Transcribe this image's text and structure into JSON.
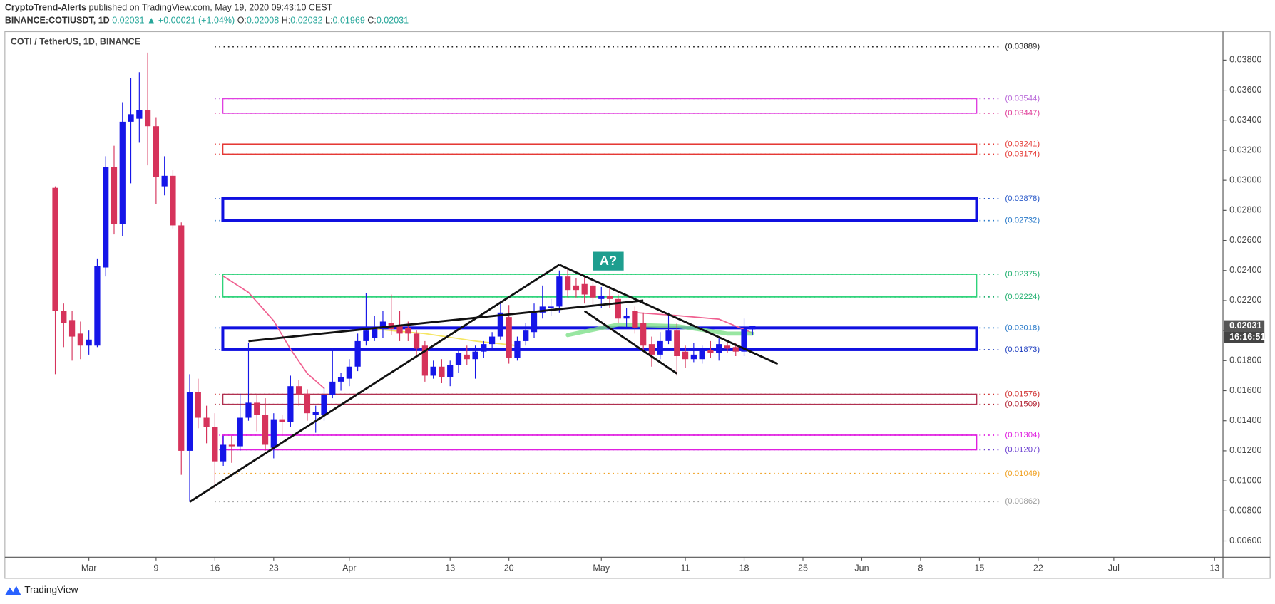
{
  "header": {
    "author": "CryptoTrend-Alerts",
    "published": " published on TradingView.com, May 19, 2020 09:43:10 CEST",
    "symbol": "BINANCE:COTIUSDT, 1D",
    "change": "▲ +0.00021 (+1.04%)",
    "ohlc_labels": [
      "O:",
      "H:",
      "L:",
      "C:"
    ],
    "countdown": "16:16:51",
    "footer": "TradingView"
  },
  "chart_data": {
    "type": "candlestick",
    "title": "COTI / TetherUS, 1D, BINANCE",
    "up_color": "#1515e8",
    "down_color": "#d6335b",
    "x": [
      "2020-02-26",
      "2020-02-27",
      "2020-02-28",
      "2020-02-29",
      "2020-03-01",
      "2020-03-02",
      "2020-03-03",
      "2020-03-04",
      "2020-03-05",
      "2020-03-06",
      "2020-03-07",
      "2020-03-08",
      "2020-03-09",
      "2020-03-10",
      "2020-03-11",
      "2020-03-12",
      "2020-03-13",
      "2020-03-14",
      "2020-03-15",
      "2020-03-16",
      "2020-03-17",
      "2020-03-18",
      "2020-03-19",
      "2020-03-20",
      "2020-03-21",
      "2020-03-22",
      "2020-03-23",
      "2020-03-24",
      "2020-03-25",
      "2020-03-26",
      "2020-03-27",
      "2020-03-28",
      "2020-03-29",
      "2020-03-30",
      "2020-03-31",
      "2020-04-01",
      "2020-04-02",
      "2020-04-03",
      "2020-04-04",
      "2020-04-05",
      "2020-04-06",
      "2020-04-07",
      "2020-04-08",
      "2020-04-09",
      "2020-04-10",
      "2020-04-11",
      "2020-04-12",
      "2020-04-13",
      "2020-04-14",
      "2020-04-15",
      "2020-04-16",
      "2020-04-17",
      "2020-04-18",
      "2020-04-19",
      "2020-04-20",
      "2020-04-21",
      "2020-04-22",
      "2020-04-23",
      "2020-04-24",
      "2020-04-25",
      "2020-04-26",
      "2020-04-27",
      "2020-04-28",
      "2020-04-29",
      "2020-04-30",
      "2020-05-01",
      "2020-05-02",
      "2020-05-03",
      "2020-05-04",
      "2020-05-05",
      "2020-05-06",
      "2020-05-07",
      "2020-05-08",
      "2020-05-09",
      "2020-05-10",
      "2020-05-11",
      "2020-05-12",
      "2020-05-13",
      "2020-05-14",
      "2020-05-15",
      "2020-05-16",
      "2020-05-17",
      "2020-05-18",
      "2020-05-19"
    ],
    "open": [
      0.0295,
      0.0213,
      0.0207,
      0.0198,
      0.019,
      0.019,
      0.0242,
      0.0309,
      0.0271,
      0.0339,
      0.0341,
      0.0347,
      0.0336,
      0.0296,
      0.0303,
      0.027,
      0.012,
      0.0159,
      0.0142,
      0.0136,
      0.0113,
      0.0124,
      0.0123,
      0.0142,
      0.0152,
      0.0144,
      0.0122,
      0.0141,
      0.0139,
      0.0163,
      0.0158,
      0.0144,
      0.0144,
      0.0157,
      0.0166,
      0.0168,
      0.0176,
      0.0193,
      0.0195,
      0.0201,
      0.0205,
      0.0203,
      0.0202,
      0.0198,
      0.019,
      0.017,
      0.0176,
      0.0169,
      0.0177,
      0.0184,
      0.0181,
      0.0186,
      0.0191,
      0.0196,
      0.0209,
      0.0182,
      0.0193,
      0.0199,
      0.0212,
      0.0215,
      0.0216,
      0.0236,
      0.023,
      0.0231,
      0.023,
      0.0221,
      0.0223,
      0.0221,
      0.0208,
      0.0213,
      0.0205,
      0.0191,
      0.0184,
      0.0193,
      0.02,
      0.0186,
      0.0181,
      0.0181,
      0.0187,
      0.0185,
      0.019,
      0.0189,
      0.0186,
      0.02008
    ],
    "high": [
      0.0296,
      0.0218,
      0.0213,
      0.0206,
      0.02,
      0.0248,
      0.0316,
      0.0323,
      0.0352,
      0.0368,
      0.0372,
      0.0385,
      0.0342,
      0.0316,
      0.0307,
      0.0272,
      0.0171,
      0.0168,
      0.015,
      0.0145,
      0.013,
      0.013,
      0.0158,
      0.0192,
      0.0158,
      0.0155,
      0.0145,
      0.0144,
      0.017,
      0.0167,
      0.0161,
      0.015,
      0.0162,
      0.0188,
      0.0172,
      0.0181,
      0.0198,
      0.0225,
      0.021,
      0.0213,
      0.0224,
      0.0213,
      0.0206,
      0.02,
      0.0193,
      0.018,
      0.0181,
      0.018,
      0.0188,
      0.019,
      0.019,
      0.0193,
      0.0199,
      0.022,
      0.0217,
      0.0196,
      0.0205,
      0.0218,
      0.023,
      0.0221,
      0.024,
      0.0242,
      0.0235,
      0.0236,
      0.0234,
      0.0229,
      0.0228,
      0.0224,
      0.0215,
      0.0216,
      0.0212,
      0.0196,
      0.0199,
      0.0212,
      0.0205,
      0.019,
      0.0192,
      0.019,
      0.0193,
      0.0195,
      0.0193,
      0.0192,
      0.0208,
      0.02032
    ],
    "low": [
      0.0171,
      0.0189,
      0.018,
      0.0181,
      0.0184,
      0.0189,
      0.0236,
      0.0264,
      0.0263,
      0.0298,
      0.0325,
      0.031,
      0.0284,
      0.029,
      0.0268,
      0.0104,
      0.0086,
      0.0135,
      0.0125,
      0.0095,
      0.011,
      0.0112,
      0.012,
      0.014,
      0.0133,
      0.012,
      0.0115,
      0.0131,
      0.0136,
      0.015,
      0.014,
      0.0132,
      0.014,
      0.0155,
      0.016,
      0.0163,
      0.0173,
      0.019,
      0.0193,
      0.0195,
      0.0197,
      0.0193,
      0.0193,
      0.0183,
      0.0166,
      0.0168,
      0.0165,
      0.0163,
      0.0172,
      0.0177,
      0.0168,
      0.0182,
      0.0188,
      0.0194,
      0.0178,
      0.018,
      0.019,
      0.0195,
      0.0208,
      0.021,
      0.0212,
      0.0222,
      0.0222,
      0.0218,
      0.0216,
      0.0215,
      0.0215,
      0.0205,
      0.0202,
      0.0198,
      0.0186,
      0.0176,
      0.0181,
      0.0191,
      0.017,
      0.0175,
      0.0179,
      0.0178,
      0.0182,
      0.018,
      0.0185,
      0.0183,
      0.0183,
      0.01969
    ],
    "close": [
      0.0213,
      0.0205,
      0.0196,
      0.019,
      0.0194,
      0.0243,
      0.0309,
      0.0271,
      0.0339,
      0.0344,
      0.0347,
      0.0336,
      0.0302,
      0.0303,
      0.027,
      0.012,
      0.0159,
      0.0142,
      0.0136,
      0.0113,
      0.0124,
      0.0123,
      0.0142,
      0.0152,
      0.0144,
      0.0124,
      0.0141,
      0.0139,
      0.0163,
      0.0157,
      0.0145,
      0.0146,
      0.0157,
      0.0166,
      0.0169,
      0.0176,
      0.0193,
      0.02,
      0.0202,
      0.0206,
      0.0201,
      0.0198,
      0.0198,
      0.0188,
      0.017,
      0.0176,
      0.0169,
      0.0177,
      0.0185,
      0.0181,
      0.0186,
      0.0191,
      0.0196,
      0.0212,
      0.0182,
      0.0193,
      0.02,
      0.0212,
      0.0216,
      0.0216,
      0.0236,
      0.0227,
      0.0227,
      0.0224,
      0.0222,
      0.0223,
      0.0221,
      0.0208,
      0.021,
      0.0202,
      0.019,
      0.0184,
      0.0193,
      0.02,
      0.0183,
      0.0181,
      0.0184,
      0.0187,
      0.0185,
      0.0191,
      0.0188,
      0.0186,
      0.0201,
      0.02031
    ],
    "xlim": [
      "2020-02-20",
      "2020-07-14"
    ],
    "xticks": [
      {
        "value": "2020-03-01",
        "label": "Mar"
      },
      {
        "value": "2020-03-09",
        "label": "9"
      },
      {
        "value": "2020-03-16",
        "label": "16"
      },
      {
        "value": "2020-03-23",
        "label": "23"
      },
      {
        "value": "2020-04-01",
        "label": "Apr"
      },
      {
        "value": "2020-04-13",
        "label": "13"
      },
      {
        "value": "2020-04-20",
        "label": "20"
      },
      {
        "value": "2020-05-01",
        "label": "May"
      },
      {
        "value": "2020-05-11",
        "label": "11"
      },
      {
        "value": "2020-05-18",
        "label": "18"
      },
      {
        "value": "2020-05-25",
        "label": "25"
      },
      {
        "value": "2020-06-01",
        "label": "Jun"
      },
      {
        "value": "2020-06-08",
        "label": "8"
      },
      {
        "value": "2020-06-15",
        "label": "15"
      },
      {
        "value": "2020-06-22",
        "label": "22"
      },
      {
        "value": "2020-07-01",
        "label": "Jul"
      },
      {
        "value": "2020-07-13",
        "label": "13"
      }
    ],
    "ylim": [
      0.00492,
      0.03989
    ],
    "yticks": [
      {
        "value": 0.006,
        "label": "0.00600"
      },
      {
        "value": 0.008,
        "label": "0.00800"
      },
      {
        "value": 0.01,
        "label": "0.01000"
      },
      {
        "value": 0.012,
        "label": "0.01200"
      },
      {
        "value": 0.014,
        "label": "0.01400"
      },
      {
        "value": 0.016,
        "label": "0.01600"
      },
      {
        "value": 0.018,
        "label": "0.01800"
      },
      {
        "value": 0.02,
        "label": "0.02000"
      },
      {
        "value": 0.022,
        "label": "0.02200"
      },
      {
        "value": 0.024,
        "label": "0.02400"
      },
      {
        "value": 0.026,
        "label": "0.02600"
      },
      {
        "value": 0.028,
        "label": "0.02800"
      },
      {
        "value": 0.03,
        "label": "0.03000"
      },
      {
        "value": 0.032,
        "label": "0.03200"
      },
      {
        "value": 0.034,
        "label": "0.03400"
      },
      {
        "value": 0.036,
        "label": "0.03600"
      },
      {
        "value": 0.038,
        "label": "0.03800"
      }
    ],
    "zones": [
      {
        "color": "#e040e0",
        "width": 1.5,
        "levels": [
          {
            "value": 0.03544,
            "label": "(0.03544)",
            "color": "#b96ad9"
          },
          {
            "value": 0.03447,
            "label": "(0.03447)",
            "color": "#e0409a"
          }
        ]
      },
      {
        "color": "#e53935",
        "width": 1.5,
        "levels": [
          {
            "value": 0.03241,
            "label": "(0.03241)",
            "color": "#e53935"
          },
          {
            "value": 0.03174,
            "label": "(0.03174)",
            "color": "#e53935"
          }
        ]
      },
      {
        "color": "#1010e0",
        "width": 3.5,
        "levels": [
          {
            "value": 0.02878,
            "label": "(0.02878)",
            "color": "#2a5ac9"
          },
          {
            "value": 0.02732,
            "label": "(0.02732)",
            "color": "#2a7ac9"
          }
        ]
      },
      {
        "color": "#2ed37a",
        "width": 1.5,
        "levels": [
          {
            "value": 0.02375,
            "label": "(0.02375)",
            "color": "#22b070"
          },
          {
            "value": 0.02224,
            "label": "(0.02224)",
            "color": "#22b070"
          }
        ]
      },
      {
        "color": "#1010e0",
        "width": 3.5,
        "levels": [
          {
            "value": 0.02018,
            "label": "(0.02018)",
            "color": "#2a7ac9"
          },
          {
            "value": 0.01873,
            "label": "(0.01873)",
            "color": "#2040c0"
          }
        ]
      },
      {
        "color": "#b03050",
        "width": 1.5,
        "levels": [
          {
            "value": 0.01576,
            "label": "(0.01576)",
            "color": "#d03030"
          },
          {
            "value": 0.01509,
            "label": "(0.01509)",
            "color": "#b02030"
          }
        ]
      },
      {
        "color": "#e020e0",
        "width": 1.5,
        "levels": [
          {
            "value": 0.01304,
            "label": "(0.01304)",
            "color": "#e020e0"
          },
          {
            "value": 0.01207,
            "label": "(0.01207)",
            "color": "#6a3fd0"
          }
        ]
      }
    ],
    "levels": [
      {
        "value": 0.03889,
        "label": "(0.03889)",
        "color": "#222222"
      },
      {
        "value": 0.01049,
        "label": "(0.01049)",
        "color": "#f0a020"
      },
      {
        "value": 0.00862,
        "label": "(0.00862)",
        "color": "#a0a0a0"
      }
    ],
    "indicators": [
      {
        "color": "#f06090",
        "width": 1.5,
        "x": [
          "2020-03-17",
          "2020-03-20",
          "2020-03-23",
          "2020-03-25",
          "2020-03-27",
          "2020-03-29"
        ],
        "values": [
          0.02362,
          0.02254,
          0.02065,
          0.01876,
          0.01714,
          0.01616
        ]
      },
      {
        "color": "#f06090",
        "width": 1.5,
        "x": [
          "2020-05-05",
          "2020-05-10",
          "2020-05-15",
          "2020-05-19"
        ],
        "values": [
          0.0212,
          0.021,
          0.02076,
          0.01984
        ]
      },
      {
        "color": "#f5e663",
        "width": 1.5,
        "x": [
          "2020-04-04",
          "2020-04-10",
          "2020-04-16",
          "2020-04-21"
        ],
        "values": [
          0.0201,
          0.0198,
          0.0193,
          0.019
        ]
      },
      {
        "color": "#7ee08a",
        "width": 5,
        "x": [
          "2020-04-27",
          "2020-05-03",
          "2020-05-10",
          "2020-05-16",
          "2020-05-19"
        ],
        "values": [
          0.0197,
          0.0204,
          0.0203,
          0.0198,
          0.0198
        ]
      }
    ],
    "trendlines": [
      {
        "x": [
          "2020-03-13",
          "2020-04-26"
        ],
        "values": [
          0.0086,
          0.02438
        ]
      },
      {
        "x": [
          "2020-03-20",
          "2020-05-06"
        ],
        "values": [
          0.0193,
          0.022
        ]
      },
      {
        "x": [
          "2020-04-26",
          "2020-05-22"
        ],
        "values": [
          0.02438,
          0.01778
        ]
      },
      {
        "x": [
          "2020-04-29",
          "2020-05-10"
        ],
        "values": [
          0.0213,
          0.01714
        ]
      }
    ],
    "annotation": "A?"
  }
}
